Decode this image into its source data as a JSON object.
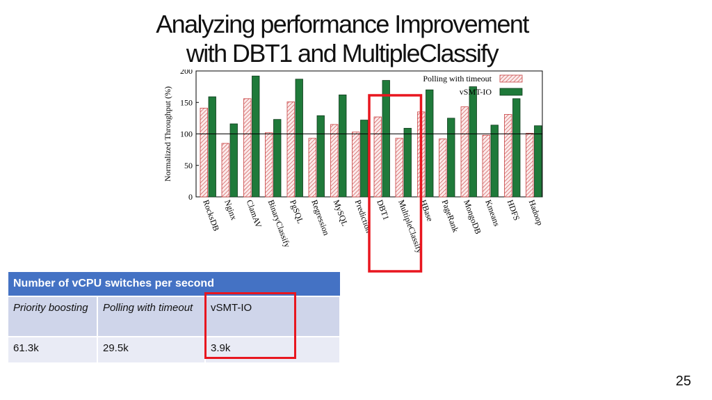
{
  "slide": {
    "title_line1": "Analyzing performance Improvement",
    "title_line2": "with DBT1 and MultipleClassify",
    "page_number": "25"
  },
  "chart_data": {
    "type": "bar",
    "ylabel": "Normalized Throughput (%)",
    "ylim": [
      0,
      200
    ],
    "yticks": [
      0,
      50,
      100,
      150,
      200
    ],
    "reference_line": 100,
    "categories": [
      "RocksDB",
      "Nginx",
      "ClamAV",
      "BinaryClassify",
      "PgSQL",
      "Regression",
      "MySQL",
      "Prediction",
      "DBT1",
      "MultipleClassify",
      "HBase",
      "PageRank",
      "MongoDB",
      "Kmeans",
      "HDFS",
      "Hadoop"
    ],
    "series": [
      {
        "name": "Polling with timeout",
        "color": "#c84040",
        "pattern": "hatched",
        "values": [
          141,
          85,
          156,
          102,
          151,
          93,
          115,
          103,
          127,
          93,
          135,
          92,
          143,
          98,
          131,
          101
        ]
      },
      {
        "name": "vSMT-IO",
        "color": "#1f7a3a",
        "pattern": "solid",
        "values": [
          159,
          116,
          192,
          123,
          187,
          129,
          162,
          122,
          185,
          109,
          170,
          125,
          175,
          114,
          156,
          113
        ]
      }
    ],
    "legend_position": "top-right",
    "highlighted_categories": [
      "DBT1",
      "MultipleClassify"
    ]
  },
  "table": {
    "header": "Number of vCPU switches per second",
    "columns": [
      "Priority boosting",
      "Polling with timeout",
      "vSMT-IO"
    ],
    "values": [
      "61.3k",
      "29.5k",
      "3.9k"
    ]
  }
}
